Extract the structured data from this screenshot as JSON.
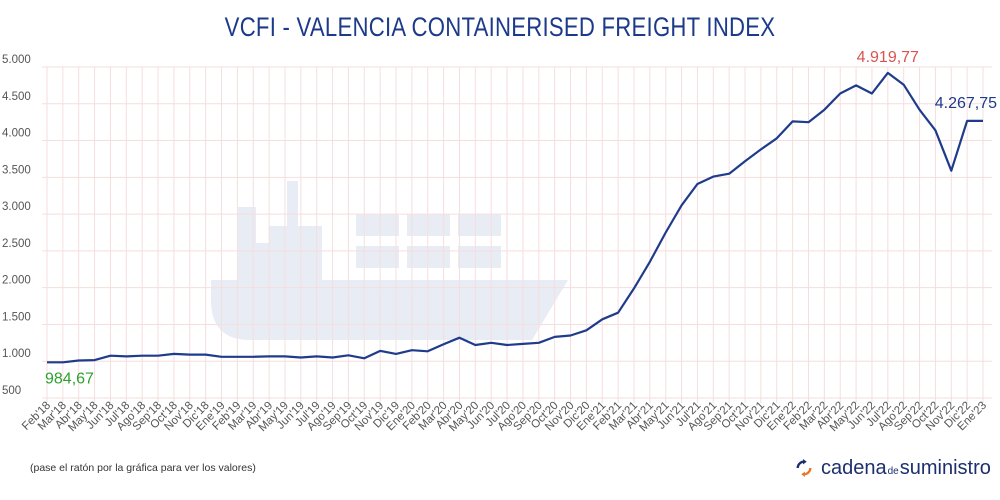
{
  "chart_data": {
    "type": "line",
    "title": "VCFI - VALENCIA CONTAINERISED FREIGHT INDEX",
    "categories": [
      "Feb'18",
      "Mar'18",
      "Abr'18",
      "May'18",
      "Jun'18",
      "Jul'18",
      "Ago'18",
      "Sep'18",
      "Oct'18",
      "Nov'18",
      "Dic'18",
      "Ene'19",
      "Feb'19",
      "Mar'19",
      "Abr'19",
      "May'19",
      "Jun'19",
      "Jul'19",
      "Ago'19",
      "Sep'19",
      "Oct'19",
      "Nov'19",
      "Dic'19",
      "Ene'20",
      "Feb'20",
      "Mar'20",
      "Abr'20",
      "May'20",
      "Jun'20",
      "Jul'20",
      "Ago'20",
      "Sep'20",
      "Oct'20",
      "Nov'20",
      "Dic'20",
      "Ene'21",
      "Feb'21",
      "Mar'21",
      "Abr'21",
      "May'21",
      "Jun'21",
      "Jul'21",
      "Ago'21",
      "Sep'21",
      "Oct'21",
      "Nov'21",
      "Dic'21",
      "Ene'22",
      "Feb'22",
      "Mar'22",
      "Abr'22",
      "May'22",
      "Jun'22",
      "Jul'22",
      "Ago'22",
      "Sep'22",
      "Oct'22",
      "Nov'22",
      "Dic'22",
      "Ene'23"
    ],
    "values": [
      984.67,
      985,
      1010,
      1015,
      1075,
      1065,
      1075,
      1075,
      1100,
      1090,
      1090,
      1060,
      1060,
      1060,
      1065,
      1065,
      1050,
      1065,
      1050,
      1080,
      1040,
      1140,
      1100,
      1150,
      1135,
      1230,
      1320,
      1220,
      1250,
      1220,
      1235,
      1250,
      1330,
      1350,
      1420,
      1570,
      1660,
      1990,
      2350,
      2750,
      3120,
      3410,
      3510,
      3550,
      3720,
      3880,
      4030,
      4260,
      4250,
      4420,
      4640,
      4750,
      4640,
      4919.77,
      4760,
      4420,
      4140,
      3590,
      4267.75,
      4267.75
    ],
    "ylim": [
      500,
      5000
    ],
    "yticks": [
      "500",
      "1.000",
      "1.500",
      "2.000",
      "2.500",
      "3.000",
      "3.500",
      "4.000",
      "4.500",
      "5.000"
    ],
    "grid": true,
    "annotations": {
      "first": {
        "text": "984,67",
        "color": "#2ea02e"
      },
      "max": {
        "text": "4.919,77",
        "color": "#d9534f"
      },
      "last": {
        "text": "4.267,75",
        "color": "#1c3a8a"
      }
    },
    "line_color": "#1f3c8c",
    "grid_color": "#f6dede"
  },
  "footer": {
    "note": "(pase el ratón por la gráfica para ver los valores)",
    "logo": {
      "part1": "cadena",
      "part2": "de",
      "part3": "suministro"
    }
  }
}
